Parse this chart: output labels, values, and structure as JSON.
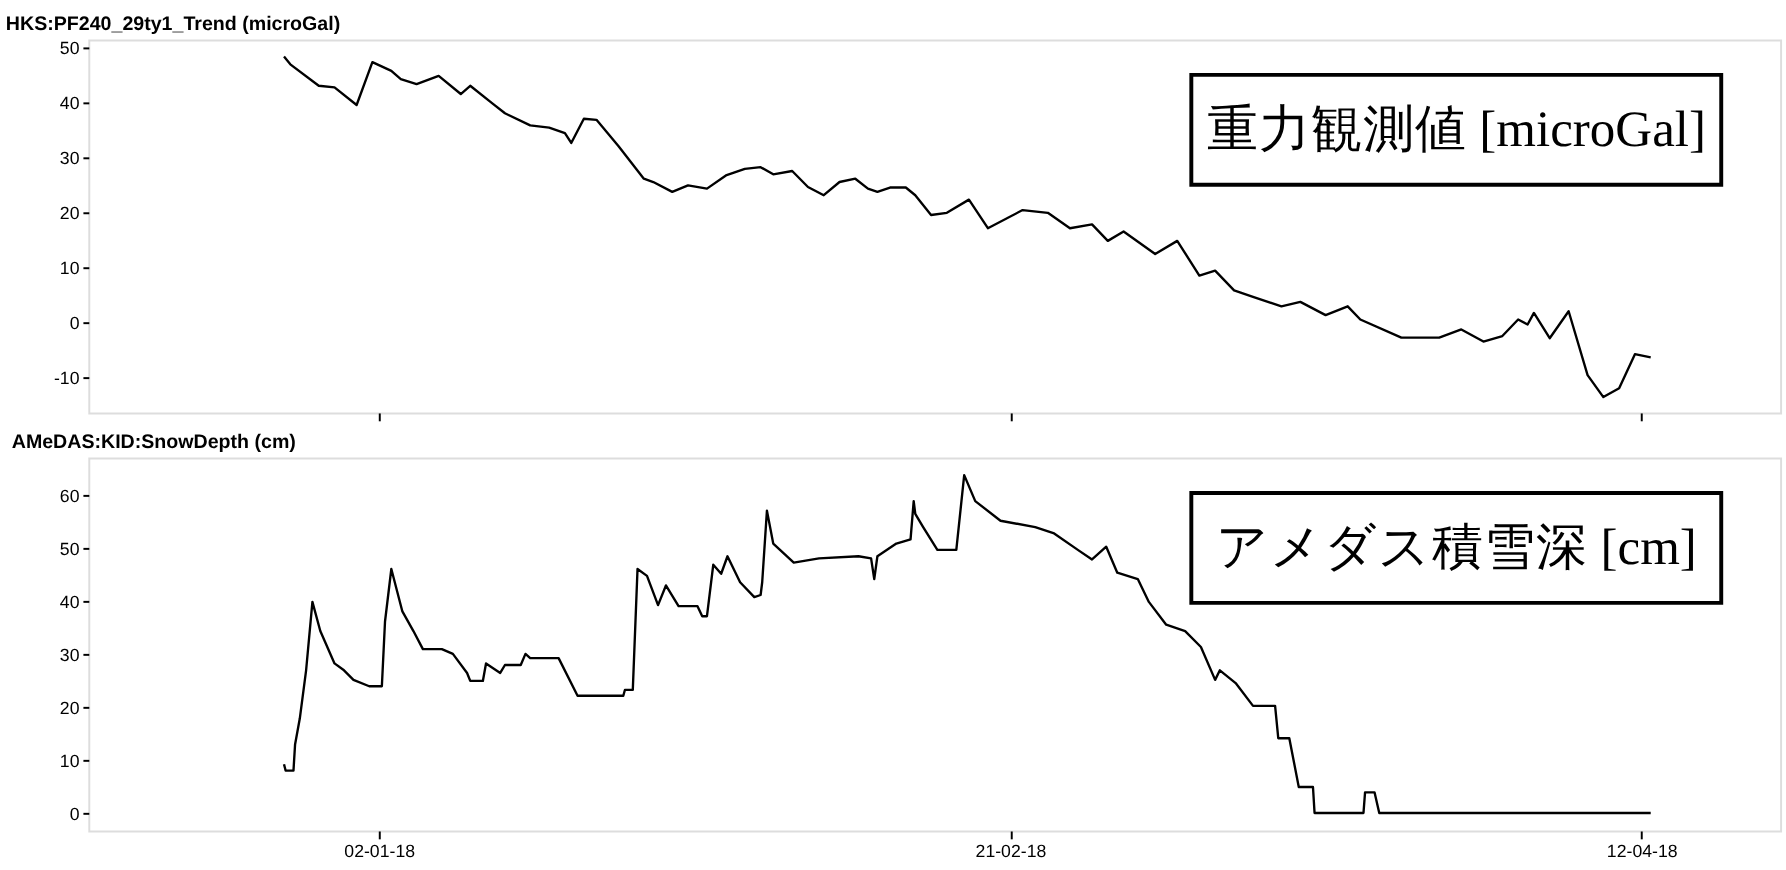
{
  "chart_data": [
    {
      "type": "line",
      "title": "HKS:PF240_29ty1_Trend (microGal)",
      "annotations": [
        "重力観測値 [microGal]"
      ],
      "xlim": [
        "2017-12-10",
        "2018-04-23"
      ],
      "ylim": [
        -16.4,
        51.4
      ],
      "yticks": [
        -10,
        0,
        10,
        20,
        30,
        40,
        50
      ],
      "xticks": [
        {
          "value": "2018-01-02",
          "label": null
        },
        {
          "value": "2018-02-21",
          "label": null
        },
        {
          "value": "2018-04-12",
          "label": null
        }
      ],
      "tick_labels": "y",
      "grid": false,
      "legend": false,
      "line_style": "solid",
      "series": [
        {
          "color": "#000000",
          "x": [
            "2017-12-25T12:00",
            "2017-12-26",
            "2017-12-28T06:00",
            "2017-12-29T12:00",
            "2017-12-31T06:00",
            "2018-01-01T12:00",
            "2018-01-03",
            "2018-01-03T18:00",
            "2018-01-05",
            "2018-01-06T18:00",
            "2018-01-08T12:00",
            "2018-01-09T06:00",
            "2018-01-11",
            "2018-01-12",
            "2018-01-14",
            "2018-01-15T12:00",
            "2018-01-16T18:00",
            "2018-01-17T06:00",
            "2018-01-18T06:00",
            "2018-01-19T06:00",
            "2018-01-21",
            "2018-01-23",
            "2018-01-23T18:00",
            "2018-01-25T06:00",
            "2018-01-26T12:00",
            "2018-01-28",
            "2018-01-29T12:00",
            "2018-01-31",
            "2018-02-01T06:00",
            "2018-02-02T06:00",
            "2018-02-03T18:00",
            "2018-02-05",
            "2018-02-06T06:00",
            "2018-02-07T12:00",
            "2018-02-08T18:00",
            "2018-02-09T18:00",
            "2018-02-10T12:00",
            "2018-02-11T12:00",
            "2018-02-12T18:00",
            "2018-02-13T12:00",
            "2018-02-14T18:00",
            "2018-02-16",
            "2018-02-17T18:00",
            "2018-02-19T06:00",
            "2018-02-22",
            "2018-02-24",
            "2018-02-25T18:00",
            "2018-02-27T12:00",
            "2018-02-28T18:00",
            "2018-03-02",
            "2018-03-04T12:00",
            "2018-03-06T06:00",
            "2018-03-08",
            "2018-03-09T06:00",
            "2018-03-10T18:00",
            "2018-03-12T06:00",
            "2018-03-14T12:00",
            "2018-03-16",
            "2018-03-18",
            "2018-03-19T18:00",
            "2018-03-20T18:00",
            "2018-03-24",
            "2018-03-27",
            "2018-03-28T18:00",
            "2018-03-30T12:00",
            "2018-04-01",
            "2018-04-02T06:00",
            "2018-04-03",
            "2018-04-03T12:00",
            "2018-04-04T18:00",
            "2018-04-06T06:00",
            "2018-04-07T18:00",
            "2018-04-09",
            "2018-04-10T06:00",
            "2018-04-11T12:00",
            "2018-04-12T18:00"
          ],
          "values": [
            48.3,
            46.9,
            43.0,
            42.7,
            39.5,
            47.3,
            45.7,
            44.2,
            43.3,
            44.8,
            41.5,
            43.0,
            39.8,
            38.0,
            35.8,
            35.4,
            34.4,
            32.6,
            37.0,
            36.8,
            32.0,
            26.1,
            25.5,
            23.7,
            24.9,
            24.3,
            26.7,
            27.9,
            28.2,
            26.9,
            27.5,
            24.6,
            23.1,
            25.5,
            26.1,
            24.3,
            23.7,
            24.5,
            24.5,
            23.1,
            19.5,
            19.9,
            22.3,
            17.1,
            20.4,
            19.9,
            17.1,
            17.8,
            14.8,
            16.5,
            12.4,
            14.8,
            8.5,
            9.4,
            5.8,
            4.6,
            2.9,
            3.7,
            1.3,
            2.9,
            0.5,
            -2.8,
            -2.8,
            -1.3,
            -3.5,
            -2.5,
            0.5,
            -0.4,
            1.7,
            -2.9,
            2.0,
            -9.6,
            -13.6,
            -12.0,
            -5.8,
            -6.4
          ]
        }
      ]
    },
    {
      "type": "line",
      "title": "AMeDAS:KID:SnowDepth (cm)",
      "annotations": [
        "アメダス積雪深 [cm]"
      ],
      "xlim": [
        "2017-12-10",
        "2018-04-23"
      ],
      "ylim": [
        -3.3,
        67
      ],
      "yticks": [
        0,
        10,
        20,
        30,
        40,
        50,
        60
      ],
      "xticks": [
        {
          "value": "2018-01-02",
          "label": "02-01-18"
        },
        {
          "value": "2018-02-21",
          "label": "21-02-18"
        },
        {
          "value": "2018-04-12",
          "label": "12-04-18"
        }
      ],
      "grid": false,
      "legend": false,
      "line_style": "solid",
      "series": [
        {
          "color": "#000000",
          "x": [
            "2017-12-25T12:00",
            "2017-12-25T15:00",
            "2017-12-26T06:00",
            "2017-12-26T09:00",
            "2017-12-26T18:00",
            "2017-12-27T06:00",
            "2017-12-27T18:00",
            "2017-12-28T09:00",
            "2017-12-29T12:00",
            "2017-12-30T06:00",
            "2017-12-31",
            "2018-01-01T06:00",
            "2018-01-02T06:00",
            "2018-01-02T12:00",
            "2018-01-03",
            "2018-01-03T21:00",
            "2018-01-04T18:00",
            "2018-01-05T12:00",
            "2018-01-07",
            "2018-01-07T21:00",
            "2018-01-09",
            "2018-01-09T06:00",
            "2018-01-10T06:00",
            "2018-01-10T12:00",
            "2018-01-11T15:00",
            "2018-01-12",
            "2018-01-13T06:00",
            "2018-01-13T15:00",
            "2018-01-14",
            "2018-01-16T06:00",
            "2018-01-17T18:00",
            "2018-01-21T09:00",
            "2018-01-21T12:00",
            "2018-01-22T03:00",
            "2018-01-22T12:00",
            "2018-01-23T06:00",
            "2018-01-24T03:00",
            "2018-01-24T18:00",
            "2018-01-25T18:00",
            "2018-01-27T06:00",
            "2018-01-27T15:00",
            "2018-01-28",
            "2018-01-28T12:00",
            "2018-01-29T03:00",
            "2018-01-29T15:00",
            "2018-01-30T15:00",
            "2018-01-31T18:00",
            "2018-02-01T06:00",
            "2018-02-01T09:00",
            "2018-02-01T18:00",
            "2018-02-02T06:00",
            "2018-02-03T21:00",
            "2018-02-05T21:00",
            "2018-02-09",
            "2018-02-10",
            "2018-02-10T06:00",
            "2018-02-10T12:00",
            "2018-02-12",
            "2018-02-13T03:00",
            "2018-02-13T09:00",
            "2018-02-13T12:00",
            "2018-02-14T03:00",
            "2018-02-15T06:00",
            "2018-02-16T18:00",
            "2018-02-17T09:00",
            "2018-02-18T06:00",
            "2018-02-20T06:00",
            "2018-02-23",
            "2018-02-24T12:00",
            "2018-02-26T09:00",
            "2018-02-27T12:00",
            "2018-02-28T15:00",
            "2018-03-01T12:00",
            "2018-03-03T03:00",
            "2018-03-04",
            "2018-03-05T09:00",
            "2018-03-06T21:00",
            "2018-03-08T03:00",
            "2018-03-09T06:00",
            "2018-03-09T15:00",
            "2018-03-10T21:00",
            "2018-03-12T06:00",
            "2018-03-14",
            "2018-03-14T06:00",
            "2018-03-15T03:00",
            "2018-03-15T21:00",
            "2018-03-17",
            "2018-03-17T03:00",
            "2018-03-21",
            "2018-03-21T03:00",
            "2018-03-21T21:00",
            "2018-03-22T06:00",
            "2018-04-12T18:00"
          ],
          "values": [
            9.2,
            8.0,
            8.0,
            12.9,
            17.8,
            26.9,
            39.8,
            34.3,
            28.2,
            26.9,
            25.1,
            23.9,
            23.9,
            36.1,
            46.0,
            38.0,
            34.3,
            30.9,
            30.9,
            30.0,
            26.4,
            24.9,
            24.9,
            28.2,
            26.4,
            27.9,
            27.9,
            30.0,
            29.2,
            29.2,
            22.1,
            22.1,
            23.2,
            23.2,
            46.0,
            44.7,
            39.2,
            42.9,
            39.0,
            39.0,
            37.1,
            37.1,
            46.8,
            45.1,
            48.4,
            43.5,
            40.7,
            41.1,
            43.5,
            57.0,
            50.8,
            47.2,
            48.0,
            48.4,
            48.0,
            44.1,
            48.4,
            50.8,
            51.6,
            58.8,
            56.4,
            53.9,
            49.6,
            49.6,
            63.7,
            58.8,
            55.1,
            53.9,
            52.7,
            49.6,
            47.8,
            50.2,
            45.3,
            44.1,
            39.8,
            35.5,
            34.3,
            31.3,
            25.1,
            26.9,
            24.5,
            20.2,
            20.2,
            14.1,
            14.1,
            4.9,
            4.9,
            0,
            0,
            3.9,
            3.9,
            0,
            0
          ]
        }
      ]
    }
  ]
}
